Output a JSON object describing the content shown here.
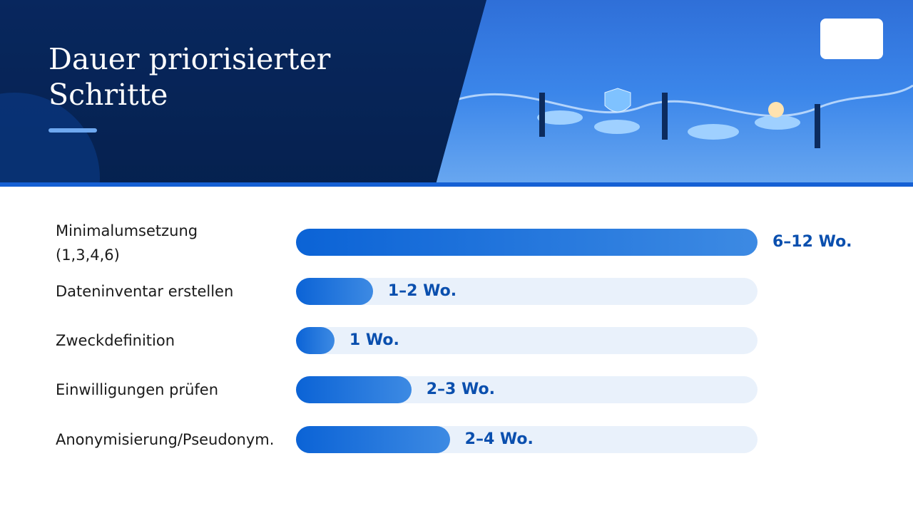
{
  "chart_data": {
    "type": "bar",
    "orientation": "horizontal",
    "title": "Dauer priorisierter Schritte",
    "categories": [
      "Minimalumsetzung (1,3,4,6)",
      "Dateninventar erstellen",
      "Zweckdefinition",
      "Einwilligungen prüfen",
      "Anonymisierung/Pseudonym."
    ],
    "values": [
      12,
      2,
      1,
      3,
      4
    ],
    "value_labels": [
      "6–12 Wo.",
      "1–2 Wo.",
      "1 Wo.",
      "2–3 Wo.",
      "2–4 Wo."
    ],
    "color": "#0b63d6",
    "xlim": [
      0,
      12
    ]
  }
}
